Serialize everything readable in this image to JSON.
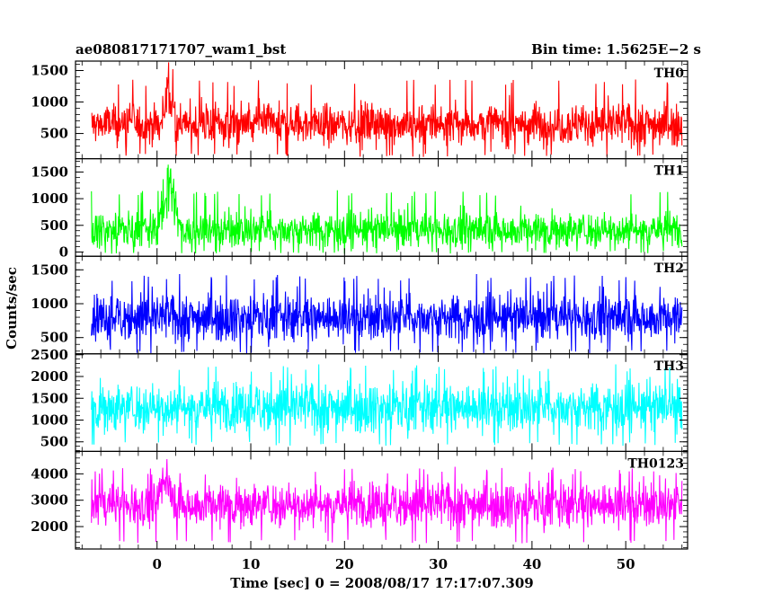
{
  "chart_data": {
    "type": "line",
    "title_left": "ae080817171707_wam1_bst",
    "title_right": "Bin time: 1.5625E−2 s",
    "xlabel": "Time [sec] 0 = 2008/08/17 17:17:07.309",
    "ylabel": "Counts/sec",
    "xlim": [
      -8.7,
      56.6
    ],
    "data_xrange": [
      -7.0,
      56.0
    ],
    "x_ticks": [
      0,
      10,
      20,
      30,
      40,
      50
    ],
    "x_tick_labels": [
      "0",
      "10",
      "20",
      "30",
      "40",
      "50"
    ],
    "panels": [
      {
        "name": "TH0",
        "color": "#ff0000",
        "ylim": [
          100,
          1650
        ],
        "y_ticks": [
          500,
          1000,
          1500
        ],
        "y_tick_labels": [
          "500",
          "1000",
          "1500"
        ],
        "mean": 650,
        "noise": 180,
        "min": 180,
        "max": 1250,
        "burst": {
          "x": [
            0.5,
            2.0
          ],
          "peak": 1650
        }
      },
      {
        "name": "TH1",
        "color": "#00ff00",
        "ylim": [
          -80,
          1750
        ],
        "y_ticks": [
          0,
          500,
          1000,
          1500
        ],
        "y_tick_labels": [
          "0",
          "500",
          "1000",
          "1500"
        ],
        "mean": 420,
        "noise": 180,
        "min": 20,
        "max": 1050,
        "burst": {
          "x": [
            0.0,
            2.5
          ],
          "peak": 1750
        }
      },
      {
        "name": "TH2",
        "color": "#0000ff",
        "ylim": [
          260,
          1700
        ],
        "y_ticks": [
          500,
          1000,
          1500
        ],
        "y_tick_labels": [
          "500",
          "1000",
          "1500"
        ],
        "mean": 800,
        "noise": 180,
        "min": 320,
        "max": 1330,
        "burst": null
      },
      {
        "name": "TH3",
        "color": "#00ffff",
        "ylim": [
          280,
          2520
        ],
        "y_ticks": [
          500,
          1000,
          1500,
          2000,
          2500
        ],
        "y_tick_labels": [
          "500",
          "1000",
          "1500",
          "2000",
          "2500"
        ],
        "mean": 1300,
        "noise": 300,
        "min": 500,
        "max": 2100,
        "burst": null
      },
      {
        "name": "TH0123",
        "color": "#ff00ff",
        "ylim": [
          1150,
          4850
        ],
        "y_ticks": [
          2000,
          3000,
          4000
        ],
        "y_tick_labels": [
          "2000",
          "3000",
          "4000"
        ],
        "mean": 2850,
        "noise": 450,
        "min": 1500,
        "max": 4000,
        "burst": {
          "x": [
            0.0,
            2.0
          ],
          "peak": 4850
        }
      }
    ]
  }
}
